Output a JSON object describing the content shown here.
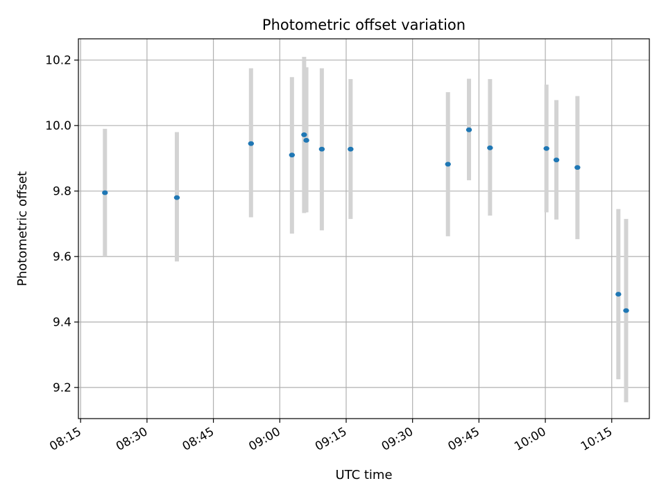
{
  "chart_data": {
    "type": "scatter",
    "title": "Photometric offset variation",
    "xlabel": "UTC time",
    "ylabel": "Photometric offset",
    "grid": true,
    "xlim_minutes": [
      494.5,
      623.5
    ],
    "ylim": [
      9.105,
      10.265
    ],
    "x_ticks": [
      {
        "label": "08:15",
        "minutes": 495
      },
      {
        "label": "08:30",
        "minutes": 510
      },
      {
        "label": "08:45",
        "minutes": 525
      },
      {
        "label": "09:00",
        "minutes": 540
      },
      {
        "label": "09:15",
        "minutes": 555
      },
      {
        "label": "09:30",
        "minutes": 570
      },
      {
        "label": "09:45",
        "minutes": 585
      },
      {
        "label": "10:00",
        "minutes": 600
      },
      {
        "label": "10:15",
        "minutes": 615
      }
    ],
    "y_ticks": [
      {
        "label": "9.2",
        "value": 9.2
      },
      {
        "label": "9.4",
        "value": 9.4
      },
      {
        "label": "9.6",
        "value": 9.6
      },
      {
        "label": "9.8",
        "value": 9.8
      },
      {
        "label": "10.0",
        "value": 10.0
      },
      {
        "label": "10.2",
        "value": 10.2
      }
    ],
    "colors": {
      "marker": "#1f77b4",
      "errorbar": "#d3d3d3",
      "grid": "#b0b0b0",
      "axes": "#000000"
    },
    "points": [
      {
        "time": "08:20:30",
        "minutes": 500.5,
        "y": 9.795,
        "err_low": 9.6,
        "err_high": 9.99
      },
      {
        "time": "08:36:45",
        "minutes": 516.75,
        "y": 9.78,
        "err_low": 9.585,
        "err_high": 9.98
      },
      {
        "time": "08:53:30",
        "minutes": 533.5,
        "y": 9.945,
        "err_low": 9.72,
        "err_high": 10.175
      },
      {
        "time": "09:02:45",
        "minutes": 542.75,
        "y": 9.91,
        "err_low": 9.67,
        "err_high": 10.148
      },
      {
        "time": "09:05:30",
        "minutes": 545.5,
        "y": 9.972,
        "err_low": 9.733,
        "err_high": 10.21
      },
      {
        "time": "09:06:00",
        "minutes": 546.0,
        "y": 9.955,
        "err_low": 9.735,
        "err_high": 10.178
      },
      {
        "time": "09:09:30",
        "minutes": 549.5,
        "y": 9.928,
        "err_low": 9.68,
        "err_high": 10.175
      },
      {
        "time": "09:16:00",
        "minutes": 556.0,
        "y": 9.928,
        "err_low": 9.715,
        "err_high": 10.142
      },
      {
        "time": "09:38:00",
        "minutes": 578.0,
        "y": 9.882,
        "err_low": 9.662,
        "err_high": 10.102
      },
      {
        "time": "09:42:45",
        "minutes": 582.75,
        "y": 9.987,
        "err_low": 9.833,
        "err_high": 10.143
      },
      {
        "time": "09:47:30",
        "minutes": 587.5,
        "y": 9.932,
        "err_low": 9.725,
        "err_high": 10.142
      },
      {
        "time": "10:00:15",
        "minutes": 600.25,
        "y": 9.93,
        "err_low": 9.735,
        "err_high": 10.125
      },
      {
        "time": "10:02:30",
        "minutes": 602.5,
        "y": 9.895,
        "err_low": 9.713,
        "err_high": 10.078
      },
      {
        "time": "10:07:15",
        "minutes": 607.25,
        "y": 9.872,
        "err_low": 9.653,
        "err_high": 10.09
      },
      {
        "time": "10:16:30",
        "minutes": 616.5,
        "y": 9.485,
        "err_low": 9.225,
        "err_high": 9.745
      },
      {
        "time": "10:18:15",
        "minutes": 618.25,
        "y": 9.435,
        "err_low": 9.155,
        "err_high": 9.715
      }
    ]
  }
}
